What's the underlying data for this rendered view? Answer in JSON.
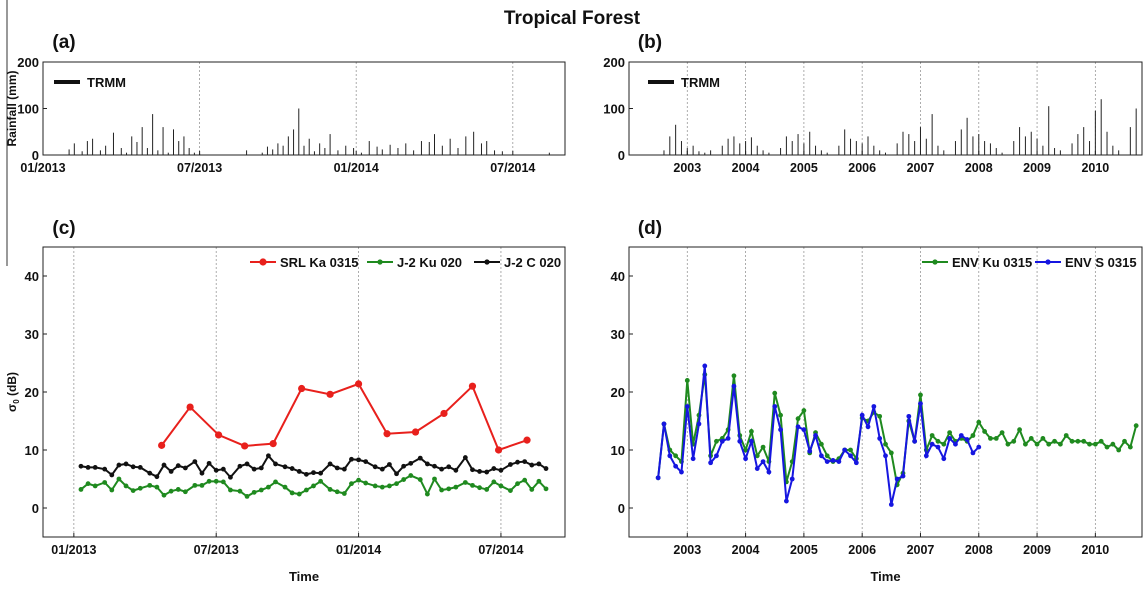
{
  "figure": {
    "title": "Tropical Forest"
  },
  "chart_data": [
    {
      "panel": "(a)",
      "type": "bar",
      "legend": [
        "TRMM"
      ],
      "ylabel": "Rainfall (mm)",
      "xlabel": "",
      "x_unit": "month (2013-01 = 0)",
      "xlim": [
        0,
        20
      ],
      "ylim": [
        0,
        200
      ],
      "xtick_labels": [
        "01/2013",
        "07/2013",
        "01/2014",
        "07/2014"
      ],
      "xtick_values": [
        0,
        6,
        12,
        18
      ],
      "ytick_values": [
        0,
        100,
        200
      ],
      "grid": "vertical",
      "legend_position": "top-left",
      "series": [
        {
          "name": "TRMM",
          "x": [
            1.0,
            1.2,
            1.5,
            1.7,
            1.9,
            2.2,
            2.4,
            2.7,
            3.0,
            3.2,
            3.4,
            3.6,
            3.8,
            4.0,
            4.2,
            4.4,
            4.6,
            4.8,
            5.0,
            5.2,
            5.4,
            5.6,
            5.8,
            6.0,
            7.8,
            8.4,
            8.6,
            8.8,
            9.0,
            9.2,
            9.4,
            9.6,
            9.8,
            10.0,
            10.2,
            10.4,
            10.6,
            10.8,
            11.0,
            11.3,
            11.6,
            11.9,
            12.2,
            12.5,
            12.8,
            13.0,
            13.3,
            13.6,
            13.9,
            14.2,
            14.5,
            14.8,
            15.0,
            15.3,
            15.6,
            15.9,
            16.2,
            16.5,
            16.8,
            17.0,
            17.3,
            17.6,
            19.4
          ],
          "values": [
            12,
            25,
            8,
            30,
            35,
            10,
            20,
            48,
            15,
            5,
            40,
            28,
            60,
            15,
            88,
            10,
            60,
            5,
            55,
            30,
            40,
            15,
            5,
            3,
            10,
            5,
            18,
            12,
            25,
            20,
            40,
            55,
            100,
            20,
            35,
            8,
            25,
            15,
            45,
            10,
            20,
            15,
            5,
            30,
            18,
            12,
            22,
            15,
            25,
            10,
            30,
            28,
            45,
            20,
            35,
            15,
            40,
            50,
            25,
            30,
            10,
            8,
            5
          ]
        }
      ]
    },
    {
      "panel": "(b)",
      "type": "bar",
      "legend": [
        "TRMM"
      ],
      "ylabel": "",
      "xlabel": "",
      "x_unit": "year",
      "xlim": [
        2002.0,
        2010.8
      ],
      "ylim": [
        0,
        200
      ],
      "xtick_labels": [
        "2003",
        "2004",
        "2005",
        "2006",
        "2007",
        "2008",
        "2009",
        "2010"
      ],
      "xtick_values": [
        2003,
        2004,
        2005,
        2006,
        2007,
        2008,
        2009,
        2010
      ],
      "ytick_values": [
        0,
        100,
        200
      ],
      "grid": "vertical",
      "legend_position": "top-left",
      "series": [
        {
          "name": "TRMM",
          "x": [
            2002.6,
            2002.7,
            2002.8,
            2002.9,
            2003.0,
            2003.1,
            2003.2,
            2003.3,
            2003.4,
            2003.6,
            2003.7,
            2003.8,
            2003.9,
            2004.0,
            2004.1,
            2004.2,
            2004.3,
            2004.4,
            2004.6,
            2004.7,
            2004.8,
            2004.9,
            2005.0,
            2005.1,
            2005.2,
            2005.3,
            2005.4,
            2005.6,
            2005.7,
            2005.8,
            2005.9,
            2006.0,
            2006.1,
            2006.2,
            2006.3,
            2006.4,
            2006.6,
            2006.7,
            2006.8,
            2006.9,
            2007.0,
            2007.1,
            2007.2,
            2007.3,
            2007.4,
            2007.6,
            2007.7,
            2007.8,
            2007.9,
            2008.0,
            2008.1,
            2008.2,
            2008.3,
            2008.4,
            2008.6,
            2008.7,
            2008.8,
            2008.9,
            2009.0,
            2009.1,
            2009.2,
            2009.3,
            2009.4,
            2009.6,
            2009.7,
            2009.8,
            2009.9,
            2010.0,
            2010.1,
            2010.2,
            2010.3,
            2010.4,
            2010.6,
            2010.7
          ],
          "values": [
            10,
            40,
            65,
            30,
            15,
            20,
            8,
            5,
            10,
            20,
            35,
            40,
            25,
            30,
            38,
            20,
            10,
            5,
            15,
            40,
            30,
            45,
            25,
            50,
            20,
            10,
            5,
            20,
            55,
            35,
            30,
            25,
            40,
            20,
            10,
            5,
            25,
            50,
            45,
            30,
            60,
            35,
            88,
            20,
            10,
            30,
            55,
            80,
            40,
            45,
            30,
            25,
            15,
            5,
            30,
            60,
            40,
            50,
            35,
            20,
            105,
            15,
            10,
            25,
            45,
            60,
            30,
            95,
            120,
            50,
            20,
            10,
            60,
            100
          ]
        }
      ]
    },
    {
      "panel": "(c)",
      "type": "line",
      "ylabel": "σ0 (dB)",
      "xlabel": "Time",
      "x_unit": "month (2013-01 = 0)",
      "xlim": [
        -1.3,
        20.7
      ],
      "ylim": [
        -5,
        45
      ],
      "xtick_labels": [
        "01/2013",
        "07/2013",
        "01/2014",
        "07/2014"
      ],
      "xtick_values": [
        0,
        6,
        12,
        18
      ],
      "ytick_values": [
        0,
        10,
        20,
        30,
        40
      ],
      "grid": "vertical",
      "legend_position": "top-right",
      "series": [
        {
          "name": "SRL Ka 0315",
          "color": "#e8201c",
          "x": [
            3.7,
            4.9,
            6.1,
            7.2,
            8.4,
            9.6,
            10.8,
            12.0,
            13.2,
            14.4,
            15.6,
            16.8,
            17.9,
            19.1
          ],
          "y": [
            10.8,
            17.4,
            12.6,
            10.7,
            11.1,
            20.6,
            19.6,
            21.4,
            12.8,
            13.1,
            16.3,
            21.0,
            10.0,
            11.7
          ]
        },
        {
          "name": "J-2 Ku 020",
          "color": "#1f8a1f",
          "x": [
            0.3,
            0.6,
            0.9,
            1.3,
            1.6,
            1.9,
            2.2,
            2.5,
            2.8,
            3.2,
            3.5,
            3.8,
            4.1,
            4.4,
            4.7,
            5.1,
            5.4,
            5.7,
            6.0,
            6.3,
            6.6,
            7.0,
            7.3,
            7.6,
            7.9,
            8.2,
            8.5,
            8.9,
            9.2,
            9.5,
            9.8,
            10.1,
            10.4,
            10.8,
            11.1,
            11.4,
            11.7,
            12.0,
            12.3,
            12.7,
            13.0,
            13.3,
            13.6,
            13.9,
            14.2,
            14.6,
            14.9,
            15.2,
            15.5,
            15.8,
            16.1,
            16.5,
            16.8,
            17.1,
            17.4,
            17.7,
            18.0,
            18.4,
            18.7,
            19.0,
            19.3,
            19.6,
            19.9
          ],
          "y": [
            3.2,
            4.2,
            3.8,
            4.4,
            3.1,
            5.0,
            3.8,
            3.0,
            3.4,
            3.9,
            3.6,
            2.2,
            2.9,
            3.2,
            2.8,
            3.9,
            3.9,
            4.6,
            4.6,
            4.5,
            3.1,
            2.9,
            2.0,
            2.7,
            3.1,
            3.6,
            4.5,
            3.6,
            2.6,
            2.4,
            3.1,
            3.8,
            4.6,
            3.2,
            2.8,
            2.5,
            4.2,
            4.8,
            4.3,
            3.8,
            3.6,
            3.8,
            4.2,
            4.9,
            5.6,
            4.9,
            2.4,
            5.0,
            3.1,
            3.3,
            3.6,
            4.4,
            3.9,
            3.5,
            3.2,
            4.5,
            3.8,
            3.0,
            4.2,
            4.8,
            3.2,
            4.6,
            3.3
          ]
        },
        {
          "name": "J-2 C 020",
          "color": "#111111",
          "x": [
            0.3,
            0.6,
            0.9,
            1.3,
            1.6,
            1.9,
            2.2,
            2.5,
            2.8,
            3.2,
            3.5,
            3.8,
            4.1,
            4.4,
            4.7,
            5.1,
            5.4,
            5.7,
            6.0,
            6.3,
            6.6,
            7.0,
            7.3,
            7.6,
            7.9,
            8.2,
            8.5,
            8.9,
            9.2,
            9.5,
            9.8,
            10.1,
            10.4,
            10.8,
            11.1,
            11.4,
            11.7,
            12.0,
            12.3,
            12.7,
            13.0,
            13.3,
            13.6,
            13.9,
            14.2,
            14.6,
            14.9,
            15.2,
            15.5,
            15.8,
            16.1,
            16.5,
            16.8,
            17.1,
            17.4,
            17.7,
            18.0,
            18.4,
            18.7,
            19.0,
            19.3,
            19.6,
            19.9
          ],
          "y": [
            7.2,
            7.0,
            7.0,
            6.7,
            5.7,
            7.4,
            7.6,
            7.1,
            7.0,
            6.0,
            5.4,
            7.4,
            6.3,
            7.3,
            6.9,
            8.0,
            6.0,
            7.7,
            6.5,
            6.7,
            5.3,
            7.2,
            7.6,
            6.7,
            6.9,
            9.0,
            7.6,
            7.1,
            6.8,
            6.3,
            5.8,
            6.1,
            6.0,
            7.6,
            6.9,
            6.7,
            8.4,
            8.3,
            8.0,
            7.1,
            6.7,
            7.5,
            5.9,
            7.2,
            7.7,
            8.6,
            7.6,
            7.2,
            6.7,
            7.1,
            6.5,
            8.7,
            6.6,
            6.3,
            6.2,
            6.8,
            6.5,
            7.5,
            7.9,
            8.0,
            7.4,
            7.6,
            6.8
          ]
        }
      ]
    },
    {
      "panel": "(d)",
      "type": "line",
      "ylabel": "",
      "xlabel": "Time",
      "x_unit": "year",
      "xlim": [
        2002.0,
        2010.8
      ],
      "ylim": [
        -5,
        45
      ],
      "xtick_labels": [
        "2003",
        "2004",
        "2005",
        "2006",
        "2007",
        "2008",
        "2009",
        "2010"
      ],
      "xtick_values": [
        2003,
        2004,
        2005,
        2006,
        2007,
        2008,
        2009,
        2010
      ],
      "ytick_values": [
        0,
        10,
        20,
        30,
        40
      ],
      "grid": "vertical",
      "legend_position": "top-right",
      "series": [
        {
          "name": "ENV Ku 0315",
          "color": "#1f8a1f",
          "x": [
            2002.5,
            2002.6,
            2002.7,
            2002.8,
            2002.9,
            2003.0,
            2003.1,
            2003.2,
            2003.3,
            2003.4,
            2003.5,
            2003.6,
            2003.7,
            2003.8,
            2003.9,
            2004.0,
            2004.1,
            2004.2,
            2004.3,
            2004.4,
            2004.5,
            2004.6,
            2004.7,
            2004.8,
            2004.9,
            2005.0,
            2005.1,
            2005.2,
            2005.3,
            2005.4,
            2005.5,
            2005.6,
            2005.7,
            2005.8,
            2005.9,
            2006.0,
            2006.1,
            2006.2,
            2006.3,
            2006.4,
            2006.5,
            2006.6,
            2006.7,
            2006.8,
            2006.9,
            2007.0,
            2007.1,
            2007.2,
            2007.3,
            2007.4,
            2007.5,
            2007.6,
            2007.7,
            2007.8,
            2007.9,
            2008.0,
            2008.1,
            2008.2,
            2008.3,
            2008.4,
            2008.5,
            2008.6,
            2008.7,
            2008.8,
            2008.9,
            2009.0,
            2009.1,
            2009.2,
            2009.3,
            2009.4,
            2009.5,
            2009.6,
            2009.7,
            2009.8,
            2009.9,
            2010.0,
            2010.1,
            2010.2,
            2010.3,
            2010.4,
            2010.5,
            2010.6,
            2010.7
          ],
          "y": [
            5.2,
            14.5,
            10.0,
            9.0,
            8.0,
            22.0,
            11.0,
            16.0,
            23.0,
            9.0,
            11.5,
            12.0,
            13.5,
            22.8,
            12.5,
            10.0,
            13.2,
            9.0,
            10.5,
            8.0,
            19.8,
            16.0,
            4.5,
            8.0,
            15.4,
            16.8,
            9.5,
            13.0,
            11.0,
            9.0,
            8.0,
            8.5,
            10.0,
            10.0,
            8.5,
            15.5,
            15.0,
            16.5,
            15.8,
            11.0,
            9.5,
            4.0,
            6.0,
            15.0,
            11.5,
            19.5,
            10.0,
            12.5,
            11.5,
            11.0,
            13.0,
            11.5,
            12.0,
            11.5,
            12.5,
            14.8,
            13.2,
            12.0,
            12.0,
            13.0,
            11.0,
            11.5,
            13.5,
            11.0,
            12.0,
            11.0,
            12.0,
            11.0,
            11.5,
            11.0,
            12.5,
            11.5,
            11.5,
            11.5,
            11.0,
            11.0,
            11.5,
            10.5,
            11.0,
            10.0,
            11.5,
            10.5,
            14.2
          ]
        },
        {
          "name": "ENV S 0315",
          "color": "#1616e0",
          "x": [
            2002.5,
            2002.6,
            2002.7,
            2002.8,
            2002.9,
            2003.0,
            2003.1,
            2003.2,
            2003.3,
            2003.4,
            2003.5,
            2003.6,
            2003.7,
            2003.8,
            2003.9,
            2004.0,
            2004.1,
            2004.2,
            2004.3,
            2004.4,
            2004.5,
            2004.6,
            2004.7,
            2004.8,
            2004.9,
            2005.0,
            2005.1,
            2005.2,
            2005.3,
            2005.4,
            2005.5,
            2005.6,
            2005.7,
            2005.8,
            2005.9,
            2006.0,
            2006.1,
            2006.2,
            2006.3,
            2006.4,
            2006.5,
            2006.6,
            2006.7,
            2006.8,
            2006.9,
            2007.0,
            2007.1,
            2007.2,
            2007.3,
            2007.4,
            2007.5,
            2007.6,
            2007.7,
            2007.8,
            2007.9,
            2008.0
          ],
          "y": [
            5.2,
            14.5,
            9.0,
            7.2,
            6.2,
            17.5,
            8.5,
            14.5,
            24.5,
            7.8,
            9.0,
            11.5,
            12.0,
            21.0,
            11.5,
            8.5,
            11.5,
            6.8,
            8.0,
            6.2,
            17.5,
            13.5,
            1.2,
            5.0,
            14.0,
            13.5,
            9.8,
            12.5,
            9.0,
            8.0,
            8.2,
            8.0,
            10.0,
            9.0,
            7.8,
            16.0,
            14.0,
            17.5,
            12.0,
            9.0,
            0.6,
            5.0,
            5.5,
            15.8,
            11.5,
            18.0,
            9.0,
            11.0,
            10.5,
            8.5,
            12.0,
            11.0,
            12.5,
            11.8,
            9.5,
            10.5
          ]
        }
      ]
    }
  ]
}
